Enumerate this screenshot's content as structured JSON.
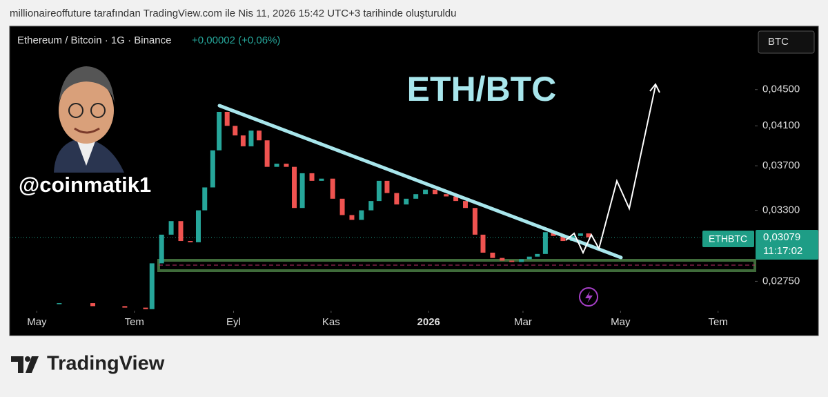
{
  "header": {
    "attribution": "millionaireoffuture tarafından TradingView.com ile Nis 11, 2026 15:42 UTC+3 tarihinde oluşturuldu"
  },
  "chart_data": {
    "type": "candlestick",
    "symbol": "Ethereum / Bitcoin · 1G · Binance",
    "change": "+0,00002 (+0,06%)",
    "currency_button": "BTC",
    "title": "ETH/BTC",
    "annotation": "@coinmatik1",
    "log_scale": true,
    "grid": false,
    "color_up": "#26a69a",
    "color_down": "#ef5350",
    "x": [
      "2025-05-15",
      "2025-06-05",
      "2025-06-25",
      "2025-07-08",
      "2025-07-12",
      "2025-07-18",
      "2025-07-24",
      "2025-07-30",
      "2025-08-05",
      "2025-08-10",
      "2025-08-14",
      "2025-08-19",
      "2025-08-23",
      "2025-08-28",
      "2025-09-02",
      "2025-09-07",
      "2025-09-12",
      "2025-09-17",
      "2025-09-22",
      "2025-09-28",
      "2025-10-04",
      "2025-10-09",
      "2025-10-14",
      "2025-10-20",
      "2025-10-26",
      "2025-11-02",
      "2025-11-08",
      "2025-11-14",
      "2025-11-20",
      "2025-11-26",
      "2025-12-01",
      "2025-12-06",
      "2025-12-12",
      "2025-12-18",
      "2025-12-24",
      "2025-12-30",
      "2026-01-05",
      "2026-01-12",
      "2026-01-18",
      "2026-01-24",
      "2026-01-30",
      "2026-02-04",
      "2026-02-10",
      "2026-02-16",
      "2026-02-22",
      "2026-02-28",
      "2026-03-05",
      "2026-03-10",
      "2026-03-15",
      "2026-03-20",
      "2026-03-26",
      "2026-04-01",
      "2026-04-06",
      "2026-04-11"
    ],
    "values": [
      0.026,
      0.0258,
      0.0257,
      0.0256,
      0.0288,
      0.031,
      0.0321,
      0.0305,
      0.0304,
      0.033,
      0.035,
      0.0385,
      0.0425,
      0.041,
      0.04,
      0.0389,
      0.0405,
      0.0395,
      0.0369,
      0.0372,
      0.0369,
      0.0332,
      0.0363,
      0.0356,
      0.0358,
      0.034,
      0.0326,
      0.0322,
      0.033,
      0.0338,
      0.0356,
      0.0345,
      0.0335,
      0.034,
      0.0344,
      0.0348,
      0.0344,
      0.0342,
      0.0338,
      0.0332,
      0.031,
      0.0296,
      0.0292,
      0.029,
      0.0289,
      0.0291,
      0.0293,
      0.0295,
      0.0312,
      0.0309,
      0.0305,
      0.0309,
      0.0311,
      0.03079
    ],
    "ylim": [
      0.0523,
      0.0255
    ],
    "yticks": [
      {
        "value": 0.045,
        "label": "0,04500"
      },
      {
        "value": 0.041,
        "label": "0,04100"
      },
      {
        "value": 0.037,
        "label": "0,03700"
      },
      {
        "value": 0.033,
        "label": "0,03300"
      },
      {
        "value": 0.0275,
        "label": "0,02750"
      }
    ],
    "xlim": [
      "2025-04-14",
      "2026-07-24"
    ],
    "xticks": [
      {
        "value": "2025-05-01",
        "label": "May"
      },
      {
        "value": "2025-07-01",
        "label": "Tem"
      },
      {
        "value": "2025-09-01",
        "label": "Eyl"
      },
      {
        "value": "2025-11-01",
        "label": "Kas"
      },
      {
        "value": "2026-01-01",
        "label": "2026"
      },
      {
        "value": "2026-03-01",
        "label": "Mar"
      },
      {
        "value": "2026-05-01",
        "label": "May"
      },
      {
        "value": "2026-07-01",
        "label": "Tem"
      }
    ],
    "last_price": {
      "name": "ETHBTC",
      "value": 0.03079,
      "label": "0,03079",
      "countdown": "11:17:02"
    }
  },
  "footer": {
    "brand": "TradingView"
  }
}
